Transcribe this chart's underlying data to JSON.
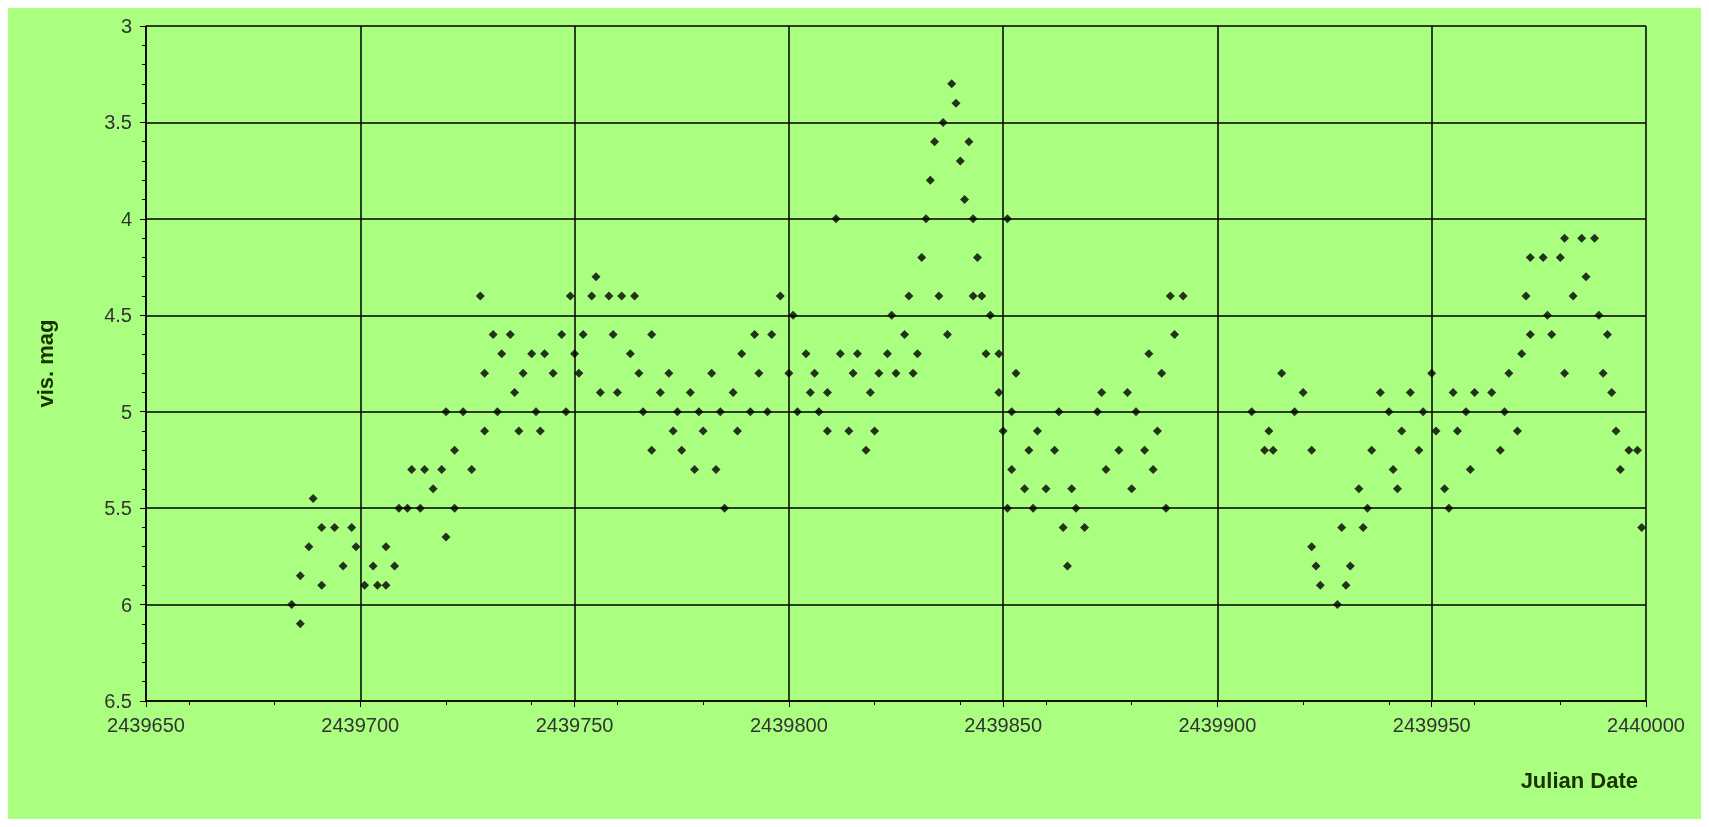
{
  "chart_data": {
    "type": "scatter",
    "xlabel": "Julian Date",
    "ylabel": "vis. mag",
    "xlim": [
      2439650,
      2440000
    ],
    "xticks": [
      2439650,
      2439700,
      2439750,
      2439800,
      2439850,
      2439900,
      2439950,
      2440000
    ],
    "ylim": [
      6.5,
      3
    ],
    "yticks": [
      3,
      3.5,
      4,
      4.5,
      5,
      5.5,
      6,
      6.5
    ],
    "grid": true,
    "marker": "diamond",
    "series": [
      {
        "color": "#000000",
        "x": [
          2439684,
          2439686,
          2439686,
          2439688,
          2439689,
          2439691,
          2439691,
          2439694,
          2439696,
          2439698,
          2439699,
          2439701,
          2439703,
          2439704,
          2439706,
          2439706,
          2439708,
          2439709,
          2439711,
          2439712,
          2439714,
          2439715,
          2439717,
          2439719,
          2439720,
          2439720,
          2439722,
          2439722,
          2439724,
          2439726,
          2439728,
          2439729,
          2439729,
          2439731,
          2439732,
          2439733,
          2439735,
          2439736,
          2439737,
          2439738,
          2439740,
          2439741,
          2439742,
          2439743,
          2439745,
          2439747,
          2439748,
          2439749,
          2439750,
          2439751,
          2439752,
          2439754,
          2439755,
          2439756,
          2439758,
          2439759,
          2439760,
          2439761,
          2439763,
          2439764,
          2439765,
          2439766,
          2439768,
          2439768,
          2439770,
          2439772,
          2439773,
          2439774,
          2439775,
          2439777,
          2439778,
          2439779,
          2439780,
          2439782,
          2439783,
          2439784,
          2439785,
          2439787,
          2439788,
          2439789,
          2439791,
          2439792,
          2439793,
          2439795,
          2439796,
          2439798,
          2439800,
          2439801,
          2439802,
          2439804,
          2439805,
          2439806,
          2439807,
          2439809,
          2439809,
          2439811,
          2439812,
          2439814,
          2439815,
          2439816,
          2439818,
          2439819,
          2439820,
          2439821,
          2439823,
          2439824,
          2439825,
          2439827,
          2439828,
          2439829,
          2439830,
          2439831,
          2439832,
          2439833,
          2439834,
          2439835,
          2439836,
          2439837,
          2439838,
          2439839,
          2439840,
          2439841,
          2439842,
          2439843,
          2439843,
          2439844,
          2439845,
          2439846,
          2439847,
          2439849,
          2439849,
          2439850,
          2439851,
          2439851,
          2439852,
          2439852,
          2439853,
          2439855,
          2439856,
          2439857,
          2439858,
          2439860,
          2439863,
          2439862,
          2439864,
          2439865,
          2439866,
          2439867,
          2439869,
          2439872,
          2439873,
          2439874,
          2439877,
          2439879,
          2439880,
          2439881,
          2439883,
          2439884,
          2439885,
          2439886,
          2439887,
          2439888,
          2439889,
          2439890,
          2439892,
          2439908,
          2439911,
          2439912,
          2439913,
          2439915,
          2439918,
          2439920,
          2439922,
          2439922,
          2439923,
          2439924,
          2439928,
          2439929,
          2439930,
          2439931,
          2439933,
          2439934,
          2439935,
          2439936,
          2439938,
          2439940,
          2439941,
          2439942,
          2439943,
          2439945,
          2439947,
          2439948,
          2439950,
          2439951,
          2439953,
          2439954,
          2439955,
          2439956,
          2439958,
          2439959,
          2439960,
          2439964,
          2439966,
          2439967,
          2439968,
          2439970,
          2439971,
          2439972,
          2439973,
          2439973,
          2439976,
          2439977,
          2439978,
          2439980,
          2439981,
          2439981,
          2439983,
          2439985,
          2439986,
          2439988,
          2439989,
          2439990,
          2439991,
          2439992,
          2439993,
          2439994,
          2439996,
          2439998,
          2439999
        ],
        "values": [
          6.0,
          6.1,
          5.85,
          5.7,
          5.45,
          5.9,
          5.6,
          5.6,
          5.8,
          5.6,
          5.7,
          5.9,
          5.8,
          5.9,
          5.9,
          5.7,
          5.8,
          5.5,
          5.5,
          5.3,
          5.5,
          5.3,
          5.4,
          5.3,
          5.65,
          5.0,
          5.5,
          5.2,
          5.0,
          5.3,
          4.4,
          4.8,
          5.1,
          4.6,
          5.0,
          4.7,
          4.6,
          4.9,
          5.1,
          4.8,
          4.7,
          5.0,
          5.1,
          4.7,
          4.8,
          4.6,
          5.0,
          4.4,
          4.7,
          4.8,
          4.6,
          4.4,
          4.3,
          4.9,
          4.4,
          4.6,
          4.9,
          4.4,
          4.7,
          4.4,
          4.8,
          5.0,
          4.6,
          5.2,
          4.9,
          4.8,
          5.1,
          5.0,
          5.2,
          4.9,
          5.3,
          5.0,
          5.1,
          4.8,
          5.3,
          5.0,
          5.5,
          4.9,
          5.1,
          4.7,
          5.0,
          4.6,
          4.8,
          5.0,
          4.6,
          4.4,
          4.8,
          4.5,
          5.0,
          4.7,
          4.9,
          4.8,
          5.0,
          4.9,
          5.1,
          4.0,
          4.7,
          5.1,
          4.8,
          4.7,
          5.2,
          4.9,
          5.1,
          4.8,
          4.7,
          4.5,
          4.8,
          4.6,
          4.4,
          4.8,
          4.7,
          4.2,
          4.0,
          3.8,
          3.6,
          4.4,
          3.5,
          4.6,
          3.3,
          3.4,
          3.7,
          3.9,
          3.6,
          4.4,
          4.0,
          4.2,
          4.4,
          4.7,
          4.5,
          4.7,
          4.9,
          5.1,
          4.0,
          5.5,
          5.0,
          5.3,
          4.8,
          5.4,
          5.2,
          5.5,
          5.1,
          5.4,
          5.0,
          5.2,
          5.6,
          5.8,
          5.4,
          5.5,
          5.6,
          5.0,
          4.9,
          5.3,
          5.2,
          4.9,
          5.4,
          5.0,
          5.2,
          4.7,
          5.3,
          5.1,
          4.8,
          5.5,
          4.4,
          4.6,
          4.4,
          5.0,
          5.2,
          5.1,
          5.2,
          4.8,
          5.0,
          4.9,
          5.2,
          5.7,
          5.8,
          5.9,
          6.0,
          5.6,
          5.9,
          5.8,
          5.4,
          5.6,
          5.5,
          5.2,
          4.9,
          5.0,
          5.3,
          5.4,
          5.1,
          4.9,
          5.2,
          5.0,
          4.8,
          5.1,
          5.4,
          5.5,
          4.9,
          5.1,
          5.0,
          5.3,
          4.9,
          4.9,
          5.2,
          5.0,
          4.8,
          5.1,
          4.7,
          4.4,
          4.2,
          4.6,
          4.2,
          4.5,
          4.6,
          4.2,
          4.1,
          4.8,
          4.4,
          4.1,
          4.3,
          4.1,
          4.5,
          4.8,
          4.6,
          4.9,
          5.1,
          5.3,
          5.2,
          5.2,
          5.6
        ]
      }
    ]
  }
}
